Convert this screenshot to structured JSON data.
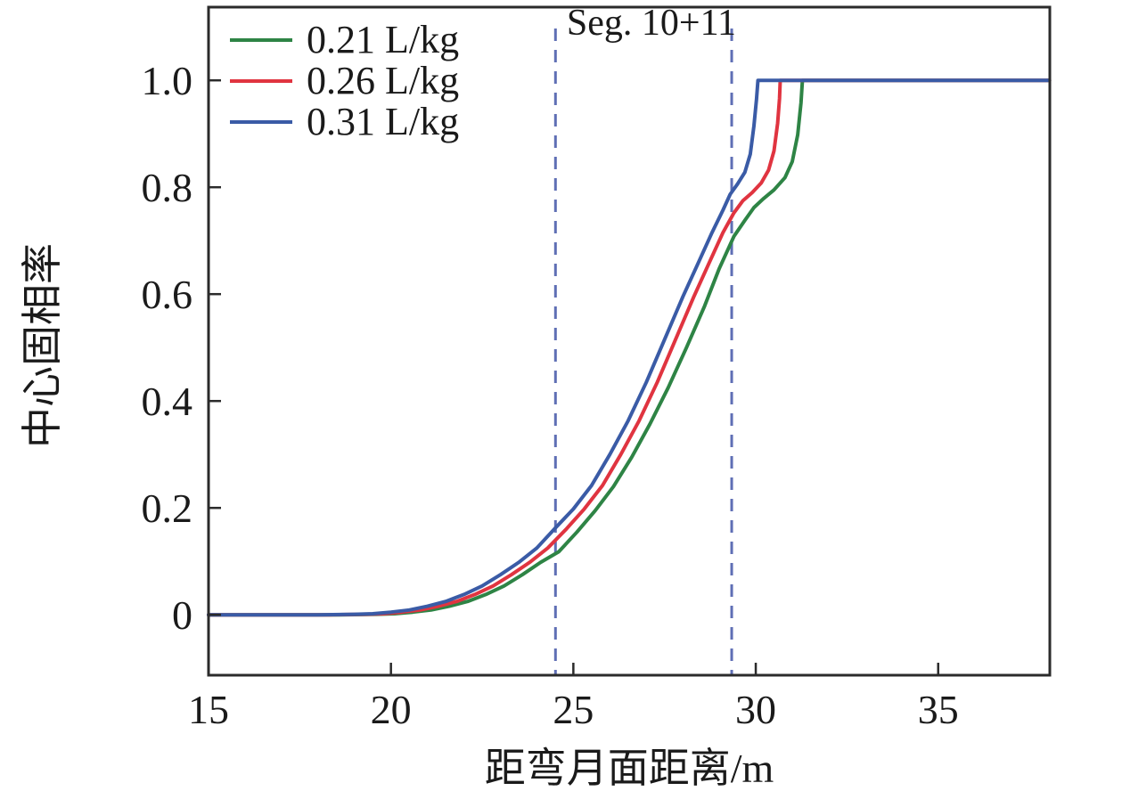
{
  "chart_data": {
    "type": "line",
    "title": "Seg. 10+11",
    "xlabel": "距弯月面距离/m",
    "ylabel": "中心固相率",
    "xlim": [
      15,
      38.06
    ],
    "ylim": [
      -0.113,
      1.137
    ],
    "x_ticks": [
      15,
      20,
      25,
      30,
      35
    ],
    "x_tick_labels": [
      "15",
      "20",
      "25",
      "30",
      "35"
    ],
    "y_ticks": [
      0,
      0.2,
      0.4,
      0.6,
      0.8,
      1.0
    ],
    "y_tick_labels": [
      "0",
      "0.2",
      "0.4",
      "0.6",
      "0.8",
      "1.0"
    ],
    "grid": false,
    "legend_position": "upper left",
    "frame_color": "#2b2b2b",
    "text_color": "#1a1a1a",
    "vlines": {
      "x": [
        24.51,
        29.34
      ],
      "style": "dashed",
      "color": "#5f6fb5",
      "annotation": "Seg. 10+11"
    },
    "series": [
      {
        "name": "0.21 L/kg",
        "color": "#2e8445",
        "points": [
          [
            15,
            0
          ],
          [
            18.6,
            0
          ],
          [
            19.6,
            0.001
          ],
          [
            20.1,
            0.002
          ],
          [
            20.6,
            0.005
          ],
          [
            21.1,
            0.009
          ],
          [
            21.6,
            0.016
          ],
          [
            22.1,
            0.025
          ],
          [
            22.6,
            0.038
          ],
          [
            23.1,
            0.054
          ],
          [
            23.6,
            0.075
          ],
          [
            24.1,
            0.098
          ],
          [
            24.6,
            0.118
          ],
          [
            25.1,
            0.155
          ],
          [
            25.6,
            0.195
          ],
          [
            26.1,
            0.24
          ],
          [
            26.6,
            0.295
          ],
          [
            27.1,
            0.357
          ],
          [
            27.6,
            0.425
          ],
          [
            28.1,
            0.5
          ],
          [
            28.6,
            0.578
          ],
          [
            29.0,
            0.648
          ],
          [
            29.4,
            0.708
          ],
          [
            29.7,
            0.738
          ],
          [
            29.95,
            0.762
          ],
          [
            30.2,
            0.778
          ],
          [
            30.5,
            0.795
          ],
          [
            30.8,
            0.818
          ],
          [
            31.0,
            0.848
          ],
          [
            31.15,
            0.898
          ],
          [
            31.24,
            0.958
          ],
          [
            31.28,
            1.0
          ],
          [
            38.05,
            1.0
          ]
        ]
      },
      {
        "name": "0.26 L/kg",
        "color": "#e03440",
        "points": [
          [
            15,
            0
          ],
          [
            18.3,
            0
          ],
          [
            19.3,
            0.001
          ],
          [
            19.8,
            0.002
          ],
          [
            20.3,
            0.005
          ],
          [
            20.8,
            0.009
          ],
          [
            21.3,
            0.016
          ],
          [
            21.8,
            0.025
          ],
          [
            22.3,
            0.038
          ],
          [
            22.8,
            0.054
          ],
          [
            23.3,
            0.075
          ],
          [
            23.8,
            0.098
          ],
          [
            24.3,
            0.125
          ],
          [
            24.8,
            0.16
          ],
          [
            25.3,
            0.198
          ],
          [
            25.8,
            0.242
          ],
          [
            26.3,
            0.3
          ],
          [
            26.8,
            0.363
          ],
          [
            27.3,
            0.435
          ],
          [
            27.8,
            0.515
          ],
          [
            28.3,
            0.595
          ],
          [
            28.7,
            0.655
          ],
          [
            29.1,
            0.715
          ],
          [
            29.4,
            0.752
          ],
          [
            29.65,
            0.775
          ],
          [
            29.9,
            0.79
          ],
          [
            30.15,
            0.808
          ],
          [
            30.35,
            0.832
          ],
          [
            30.5,
            0.868
          ],
          [
            30.6,
            0.92
          ],
          [
            30.65,
            0.966
          ],
          [
            30.67,
            1.0
          ],
          [
            38.05,
            1.0
          ]
        ]
      },
      {
        "name": "0.31 L/kg",
        "color": "#3a5ba6",
        "points": [
          [
            15,
            0
          ],
          [
            18.0,
            0
          ],
          [
            19.0,
            0.001
          ],
          [
            19.5,
            0.002
          ],
          [
            20.0,
            0.005
          ],
          [
            20.5,
            0.009
          ],
          [
            21.0,
            0.016
          ],
          [
            21.5,
            0.025
          ],
          [
            22.0,
            0.038
          ],
          [
            22.5,
            0.054
          ],
          [
            23.0,
            0.075
          ],
          [
            23.5,
            0.098
          ],
          [
            24.0,
            0.125
          ],
          [
            24.5,
            0.162
          ],
          [
            25.0,
            0.198
          ],
          [
            25.5,
            0.242
          ],
          [
            26.0,
            0.3
          ],
          [
            26.5,
            0.363
          ],
          [
            27.0,
            0.435
          ],
          [
            27.5,
            0.515
          ],
          [
            28.0,
            0.595
          ],
          [
            28.4,
            0.655
          ],
          [
            28.8,
            0.715
          ],
          [
            29.1,
            0.757
          ],
          [
            29.3,
            0.787
          ],
          [
            29.5,
            0.806
          ],
          [
            29.7,
            0.828
          ],
          [
            29.85,
            0.862
          ],
          [
            29.95,
            0.915
          ],
          [
            30.02,
            0.965
          ],
          [
            30.06,
            1.0
          ],
          [
            38.05,
            1.0
          ]
        ]
      }
    ]
  }
}
